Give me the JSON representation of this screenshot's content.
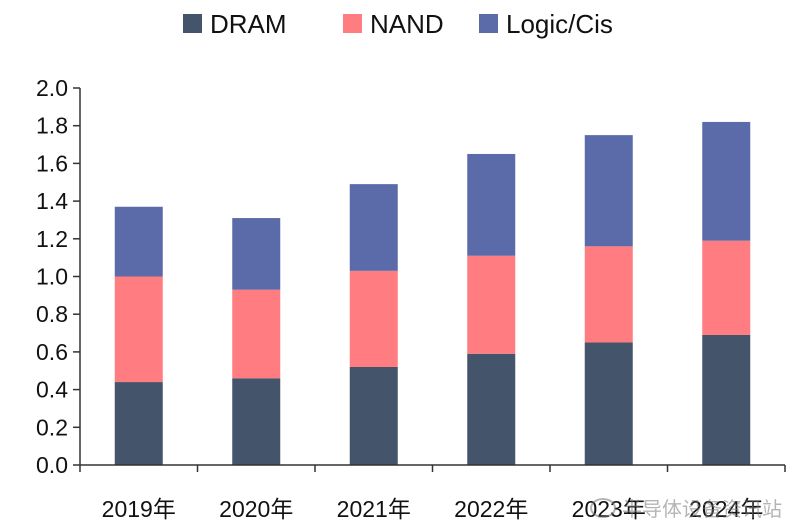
{
  "chart_data": {
    "type": "bar",
    "stacked": true,
    "categories": [
      "2019年",
      "2020年",
      "2021年",
      "2022年",
      "2023年",
      "2024年"
    ],
    "series": [
      {
        "name": "DRAM",
        "color": "#44546a",
        "values": [
          0.44,
          0.46,
          0.52,
          0.59,
          0.65,
          0.69
        ]
      },
      {
        "name": "NAND",
        "color": "#ff7c80",
        "values": [
          0.56,
          0.47,
          0.51,
          0.52,
          0.51,
          0.5
        ]
      },
      {
        "name": "Logic/Cis",
        "color": "#5b6aa8",
        "values": [
          0.37,
          0.38,
          0.46,
          0.54,
          0.59,
          0.63
        ]
      }
    ],
    "ylim": [
      0,
      2.0
    ],
    "yticks": [
      "0.0",
      "0.2",
      "0.4",
      "0.6",
      "0.8",
      "1.0",
      "1.2",
      "1.4",
      "1.6",
      "1.8",
      "2.0"
    ],
    "legend": "top",
    "grid": false
  },
  "watermark": {
    "text": "半导体设备资讯站"
  }
}
